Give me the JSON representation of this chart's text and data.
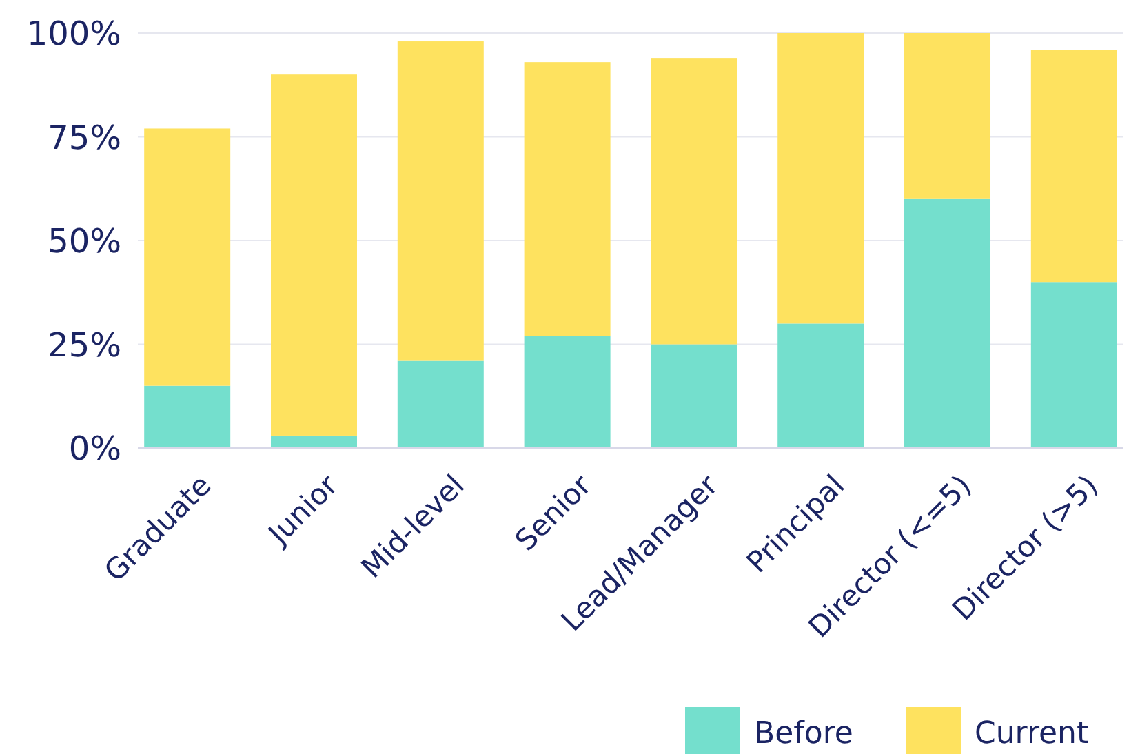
{
  "chart_data": {
    "type": "bar",
    "stacked": true,
    "categories": [
      "Graduate",
      "Junior",
      "Mid-level",
      "Senior",
      "Lead/Manager",
      "Principal",
      "Director (<=5)",
      "Director (>5)"
    ],
    "series": [
      {
        "name": "Before",
        "color": "#74dfcd",
        "values": [
          15,
          3,
          21,
          27,
          25,
          30,
          60,
          40
        ]
      },
      {
        "name": "Current",
        "color": "#fee25f",
        "values": [
          62,
          87,
          77,
          66,
          69,
          70,
          40,
          56
        ]
      }
    ],
    "ylim": [
      0,
      100
    ],
    "yticks": [
      {
        "value": 0,
        "label": "0%"
      },
      {
        "value": 25,
        "label": "25%"
      },
      {
        "value": 50,
        "label": "50%"
      },
      {
        "value": 75,
        "label": "75%"
      },
      {
        "value": 100,
        "label": "100%"
      }
    ],
    "grid": "y",
    "legend": "bottom right"
  }
}
